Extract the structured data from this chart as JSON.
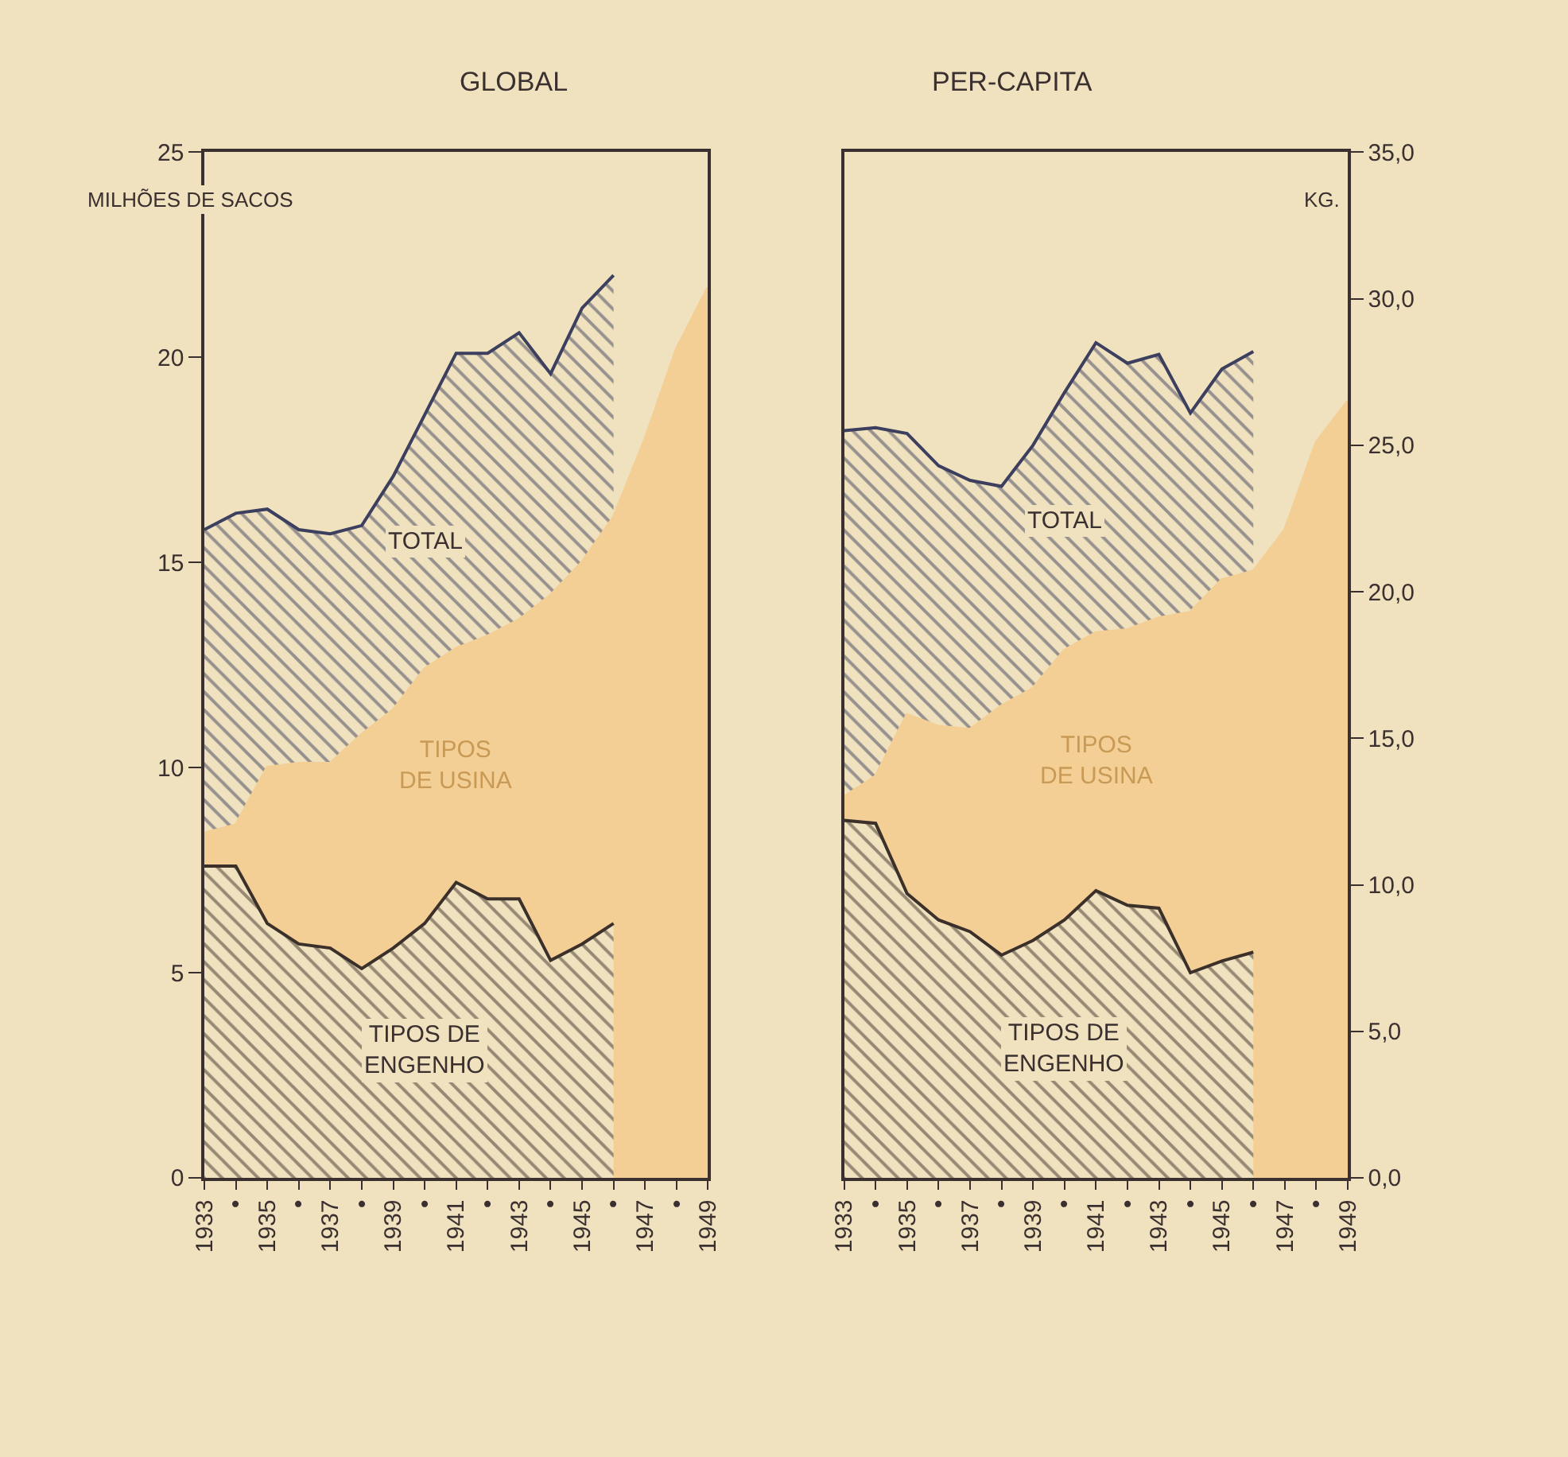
{
  "chart_data": [
    {
      "type": "area",
      "title": "GLOBAL",
      "ylabel": "MILHÕES DE SACOS",
      "xlim": [
        1933,
        1949
      ],
      "ylim": [
        0,
        25
      ],
      "yticks": [
        0,
        5,
        10,
        15,
        20,
        25
      ],
      "xticks": [
        1933,
        {
          "value": 1934,
          "label": "•"
        },
        1935,
        {
          "value": 1936,
          "label": "•"
        },
        1937,
        {
          "value": 1938,
          "label": "•"
        },
        1939,
        {
          "value": 1940,
          "label": "•"
        },
        1941,
        {
          "value": 1942,
          "label": "•"
        },
        1943,
        {
          "value": 1944,
          "label": "•"
        },
        1945,
        {
          "value": 1946,
          "label": "•"
        },
        1947,
        {
          "value": 1948,
          "label": "•"
        },
        1949
      ],
      "legend": false,
      "series": [
        {
          "name": "TOTAL",
          "color": "#3c3f5e",
          "x": [
            1933,
            1934,
            1935,
            1936,
            1937,
            1938,
            1939,
            1940,
            1941,
            1942,
            1943,
            1944,
            1945,
            1946
          ],
          "values": [
            15.8,
            16.2,
            16.3,
            15.8,
            15.7,
            15.9,
            17.1,
            18.6,
            20.1,
            20.1,
            20.6,
            19.6,
            21.2,
            22.0
          ]
        },
        {
          "name": "TIPOS\nDE USINA",
          "color": "#f3cf95",
          "x": [
            1933,
            1934,
            1935,
            1936,
            1937,
            1938,
            1939,
            1940,
            1941,
            1942,
            1943,
            1944,
            1945,
            1946,
            1947,
            1948,
            1949
          ],
          "values": [
            8.4,
            8.6,
            10.0,
            10.1,
            10.1,
            10.8,
            11.4,
            12.4,
            12.9,
            13.2,
            13.6,
            14.2,
            15.0,
            16.1,
            18.0,
            20.2,
            21.7
          ]
        },
        {
          "name": "TIPOS DE\nENGENHO",
          "color": "#3b302a",
          "x": [
            1933,
            1934,
            1935,
            1936,
            1937,
            1938,
            1939,
            1940,
            1941,
            1942,
            1943,
            1944,
            1945,
            1946
          ],
          "values": [
            7.6,
            7.6,
            6.2,
            5.7,
            5.6,
            5.1,
            5.6,
            6.2,
            7.2,
            6.8,
            6.8,
            5.3,
            5.7,
            6.2
          ]
        }
      ]
    },
    {
      "type": "area",
      "title": "PER-CAPITA",
      "y2label": "KG.",
      "xlim": [
        1933,
        1949
      ],
      "y2lim": [
        0,
        35
      ],
      "y2ticks": [
        {
          "value": 0,
          "label": "0,0"
        },
        {
          "value": 5,
          "label": "5,0"
        },
        {
          "value": 10,
          "label": "10,0"
        },
        {
          "value": 15,
          "label": "15,0"
        },
        {
          "value": 20,
          "label": "20,0"
        },
        {
          "value": 25,
          "label": "25,0"
        },
        {
          "value": 30,
          "label": "30,0"
        },
        {
          "value": 35,
          "label": "35,0"
        }
      ],
      "xticks": [
        1933,
        {
          "value": 1934,
          "label": "•"
        },
        1935,
        {
          "value": 1936,
          "label": "•"
        },
        1937,
        {
          "value": 1938,
          "label": "•"
        },
        1939,
        {
          "value": 1940,
          "label": "•"
        },
        1941,
        {
          "value": 1942,
          "label": "•"
        },
        1943,
        {
          "value": 1944,
          "label": "•"
        },
        1945,
        {
          "value": 1946,
          "label": "•"
        },
        1947,
        {
          "value": 1948,
          "label": "•"
        },
        1949
      ],
      "legend": false,
      "series": [
        {
          "name": "TOTAL",
          "color": "#3c3f5e",
          "axis": "y2",
          "x": [
            1933,
            1934,
            1935,
            1936,
            1937,
            1938,
            1939,
            1940,
            1941,
            1942,
            1943,
            1944,
            1945,
            1946
          ],
          "values": [
            25.5,
            25.6,
            25.4,
            24.3,
            23.8,
            23.6,
            25.0,
            26.8,
            28.5,
            27.8,
            28.1,
            26.1,
            27.6,
            28.2
          ]
        },
        {
          "name": "TIPOS\nDE USINA",
          "color": "#f3cf95",
          "axis": "y2",
          "x": [
            1933,
            1934,
            1935,
            1936,
            1937,
            1938,
            1939,
            1940,
            1941,
            1942,
            1943,
            1944,
            1945,
            1946,
            1947,
            1948,
            1949
          ],
          "values": [
            13.0,
            13.7,
            15.8,
            15.4,
            15.3,
            16.1,
            16.7,
            18.0,
            18.6,
            18.7,
            19.1,
            19.3,
            20.4,
            20.7,
            22.1,
            25.1,
            26.5
          ]
        },
        {
          "name": "TIPOS DE\nENGENHO",
          "color": "#3b302a",
          "axis": "y2",
          "x": [
            1933,
            1934,
            1935,
            1936,
            1937,
            1938,
            1939,
            1940,
            1941,
            1942,
            1943,
            1944,
            1945,
            1946
          ],
          "values": [
            12.2,
            12.1,
            9.7,
            8.8,
            8.4,
            7.6,
            8.1,
            8.8,
            9.8,
            9.3,
            9.2,
            7.0,
            7.4,
            7.7
          ]
        }
      ]
    }
  ]
}
